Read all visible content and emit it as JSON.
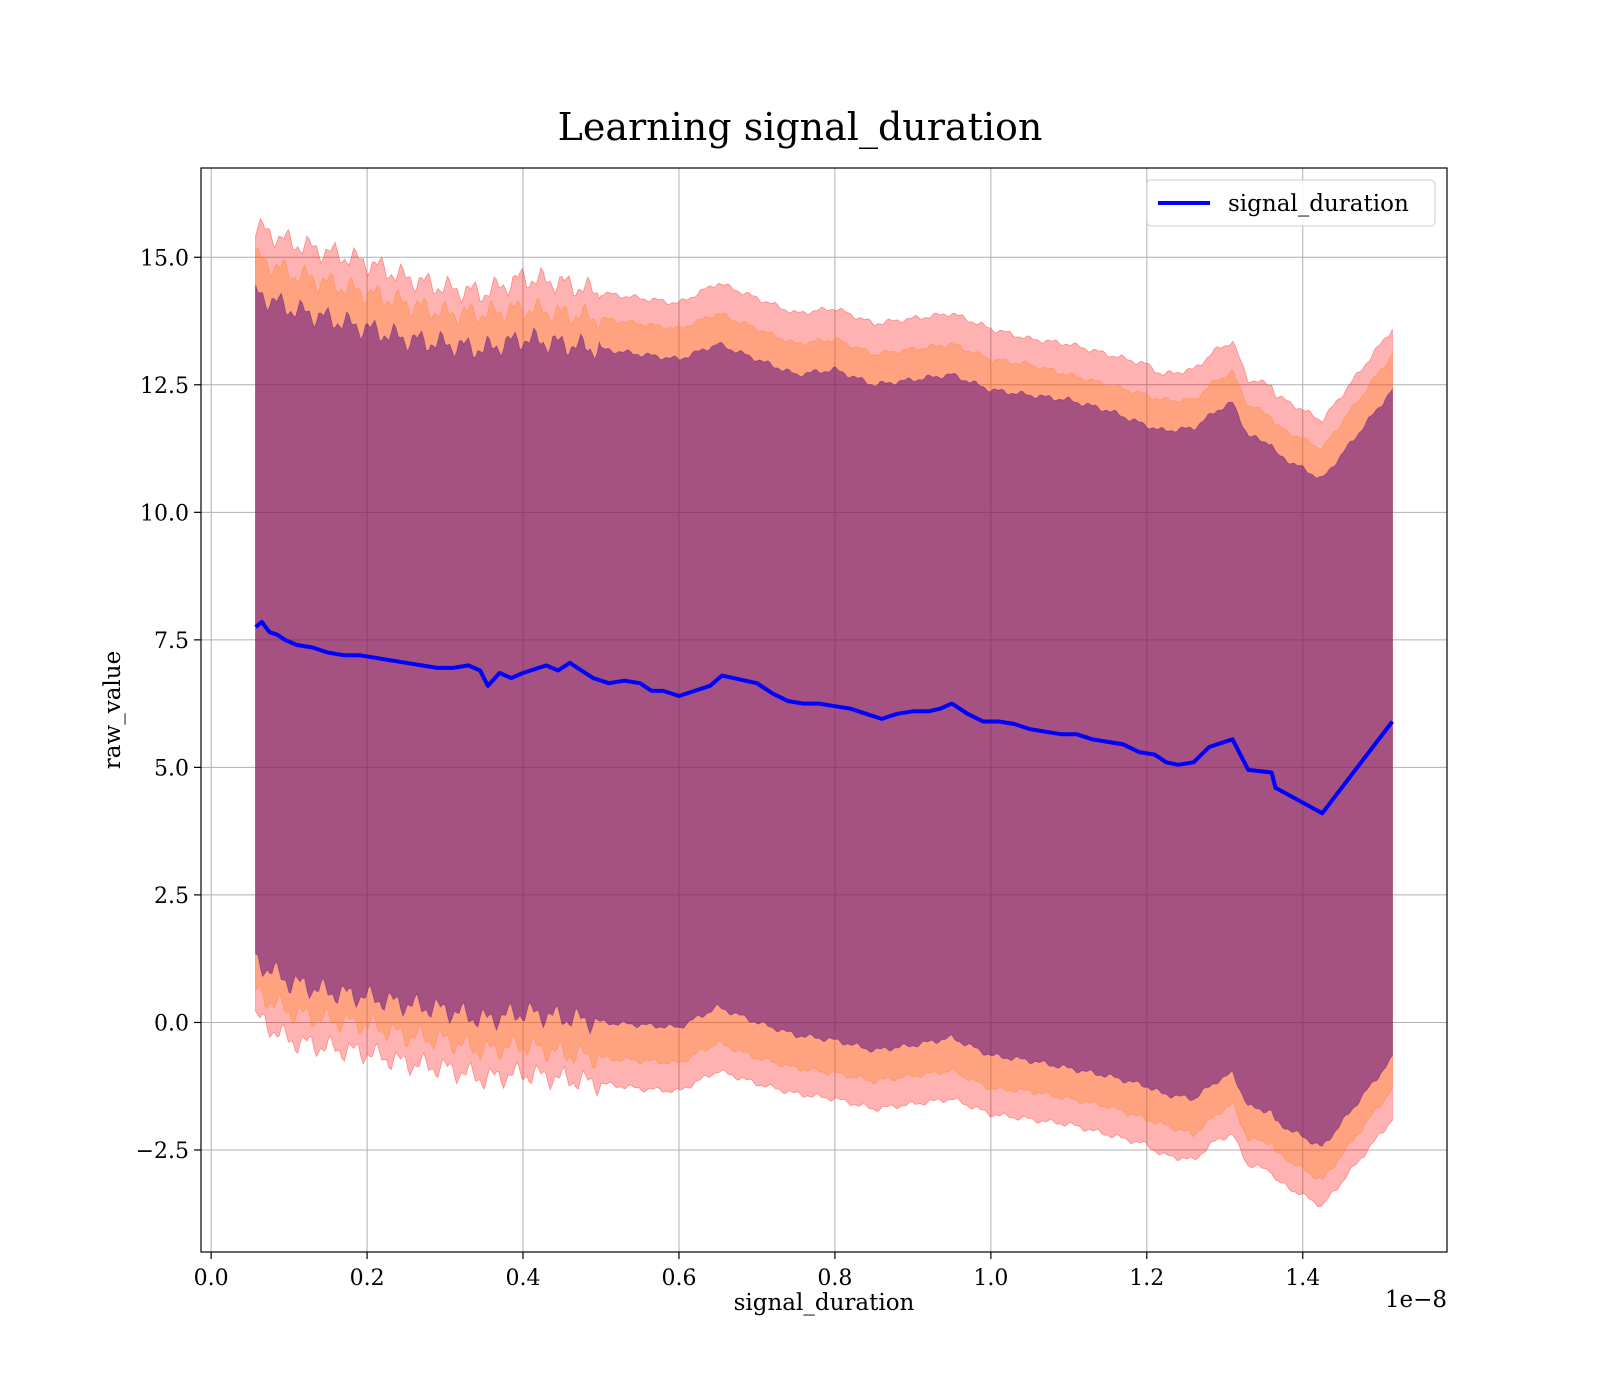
{
  "chart_data": {
    "type": "line",
    "title": "Learning signal_duration",
    "xlabel": "signal_duration",
    "ylabel": "raw_value",
    "x_offset_label": "1e−8",
    "x_scale": 1e-08,
    "xlim": [
      -0.013,
      1.585
    ],
    "ylim": [
      -4.5,
      16.75
    ],
    "x_ticks": [
      0.0,
      0.2,
      0.4,
      0.6,
      0.8,
      1.0,
      1.2,
      1.4
    ],
    "x_tick_labels": [
      "0.0",
      "0.2",
      "0.4",
      "0.6",
      "0.8",
      "1.0",
      "1.2",
      "1.4"
    ],
    "y_ticks": [
      -2.5,
      0.0,
      2.5,
      5.0,
      7.5,
      10.0,
      12.5,
      15.0
    ],
    "y_tick_labels": [
      "−2.5",
      "0.0",
      "2.5",
      "5.0",
      "7.5",
      "10.0",
      "12.5",
      "15.0"
    ],
    "grid": true,
    "legend": {
      "placement": "upper-right",
      "entries": [
        "signal_duration"
      ]
    },
    "colors": {
      "line": "#0000ff",
      "band_outer": "#ff0000",
      "band_middle": "#ff7f0e",
      "band_inner": "#4b0082"
    },
    "series": [
      {
        "name": "signal_duration",
        "x": [
          0.057,
          0.065,
          0.075,
          0.085,
          0.095,
          0.11,
          0.13,
          0.15,
          0.17,
          0.19,
          0.21,
          0.23,
          0.25,
          0.27,
          0.29,
          0.31,
          0.33,
          0.345,
          0.355,
          0.37,
          0.385,
          0.4,
          0.42,
          0.43,
          0.445,
          0.46,
          0.475,
          0.49,
          0.51,
          0.53,
          0.55,
          0.565,
          0.58,
          0.6,
          0.62,
          0.64,
          0.655,
          0.67,
          0.685,
          0.7,
          0.72,
          0.74,
          0.76,
          0.78,
          0.8,
          0.82,
          0.84,
          0.86,
          0.88,
          0.9,
          0.92,
          0.935,
          0.95,
          0.97,
          0.99,
          1.01,
          1.03,
          1.05,
          1.07,
          1.09,
          1.11,
          1.13,
          1.15,
          1.17,
          1.19,
          1.21,
          1.225,
          1.24,
          1.26,
          1.28,
          1.31,
          1.33,
          1.36,
          1.365,
          1.425,
          1.515
        ],
        "y": [
          7.75,
          7.85,
          7.65,
          7.6,
          7.5,
          7.4,
          7.35,
          7.25,
          7.2,
          7.2,
          7.15,
          7.1,
          7.05,
          7.0,
          6.95,
          6.95,
          7.0,
          6.9,
          6.6,
          6.85,
          6.75,
          6.85,
          6.95,
          7.0,
          6.9,
          7.05,
          6.9,
          6.75,
          6.65,
          6.7,
          6.65,
          6.5,
          6.5,
          6.4,
          6.5,
          6.6,
          6.8,
          6.75,
          6.7,
          6.65,
          6.45,
          6.3,
          6.25,
          6.25,
          6.2,
          6.15,
          6.05,
          5.95,
          6.05,
          6.1,
          6.1,
          6.15,
          6.25,
          6.05,
          5.9,
          5.9,
          5.85,
          5.75,
          5.7,
          5.65,
          5.65,
          5.55,
          5.5,
          5.45,
          5.3,
          5.25,
          5.1,
          5.05,
          5.1,
          5.4,
          5.55,
          4.95,
          4.9,
          4.6,
          4.1,
          5.9
        ]
      }
    ],
    "bands": [
      {
        "role": "outer",
        "x": [
          0.057,
          0.1,
          0.15,
          0.2,
          0.25,
          0.3,
          0.35,
          0.4,
          0.45,
          0.5,
          0.55,
          0.6,
          0.65,
          0.7,
          0.75,
          0.8,
          0.85,
          0.9,
          0.95,
          1.0,
          1.05,
          1.1,
          1.15,
          1.2,
          1.22,
          1.26,
          1.29,
          1.31,
          1.33,
          1.36,
          1.365,
          1.425,
          1.515
        ],
        "upper": [
          15.6,
          15.3,
          15.1,
          14.9,
          14.6,
          14.4,
          14.3,
          14.6,
          14.5,
          14.3,
          14.2,
          14.1,
          14.5,
          14.2,
          13.9,
          14.0,
          13.7,
          13.8,
          13.9,
          13.6,
          13.4,
          13.3,
          13.1,
          12.9,
          12.7,
          12.8,
          13.2,
          13.35,
          12.6,
          12.5,
          12.3,
          11.8,
          13.6
        ],
        "lower": [
          0.1,
          -0.35,
          -0.5,
          -0.6,
          -0.8,
          -0.9,
          -1.1,
          -1.0,
          -1.1,
          -1.2,
          -1.3,
          -1.35,
          -0.95,
          -1.2,
          -1.4,
          -1.5,
          -1.7,
          -1.6,
          -1.5,
          -1.8,
          -1.9,
          -2.0,
          -2.2,
          -2.4,
          -2.6,
          -2.7,
          -2.3,
          -2.2,
          -2.8,
          -2.9,
          -3.1,
          -3.6,
          -1.9
        ]
      },
      {
        "role": "middle",
        "x": [
          0.057,
          0.1,
          0.15,
          0.2,
          0.25,
          0.3,
          0.35,
          0.4,
          0.45,
          0.5,
          0.55,
          0.6,
          0.65,
          0.7,
          0.75,
          0.8,
          0.85,
          0.9,
          0.95,
          1.0,
          1.05,
          1.1,
          1.15,
          1.2,
          1.22,
          1.26,
          1.29,
          1.31,
          1.33,
          1.36,
          1.365,
          1.425,
          1.515
        ],
        "upper": [
          15.0,
          14.7,
          14.5,
          14.3,
          14.1,
          13.9,
          13.9,
          14.0,
          13.9,
          13.8,
          13.7,
          13.6,
          13.9,
          13.6,
          13.3,
          13.4,
          13.1,
          13.2,
          13.3,
          13.0,
          12.9,
          12.7,
          12.5,
          12.3,
          12.2,
          12.2,
          12.6,
          12.75,
          12.1,
          11.9,
          11.7,
          11.25,
          13.1
        ],
        "lower": [
          0.6,
          0.2,
          0.05,
          -0.05,
          -0.25,
          -0.35,
          -0.55,
          -0.45,
          -0.6,
          -0.7,
          -0.75,
          -0.8,
          -0.4,
          -0.7,
          -0.9,
          -1.0,
          -1.15,
          -1.05,
          -0.95,
          -1.3,
          -1.35,
          -1.5,
          -1.65,
          -1.9,
          -2.0,
          -2.2,
          -1.8,
          -1.6,
          -2.3,
          -2.35,
          -2.55,
          -3.1,
          -1.3
        ]
      },
      {
        "role": "inner",
        "x": [
          0.057,
          0.1,
          0.15,
          0.2,
          0.25,
          0.3,
          0.35,
          0.4,
          0.45,
          0.5,
          0.55,
          0.6,
          0.65,
          0.7,
          0.75,
          0.8,
          0.85,
          0.9,
          0.95,
          1.0,
          1.05,
          1.1,
          1.15,
          1.2,
          1.22,
          1.26,
          1.29,
          1.31,
          1.33,
          1.36,
          1.365,
          1.425,
          1.515
        ],
        "upper": [
          14.3,
          14.0,
          13.8,
          13.6,
          13.4,
          13.3,
          13.2,
          13.4,
          13.3,
          13.2,
          13.1,
          13.0,
          13.3,
          13.0,
          12.7,
          12.8,
          12.5,
          12.6,
          12.7,
          12.4,
          12.3,
          12.2,
          12.0,
          11.7,
          11.6,
          11.65,
          12.0,
          12.15,
          11.5,
          11.35,
          11.15,
          10.65,
          12.4
        ],
        "lower": [
          1.2,
          0.8,
          0.6,
          0.5,
          0.35,
          0.25,
          0.05,
          0.2,
          0.1,
          0.0,
          -0.05,
          -0.1,
          0.3,
          0.0,
          -0.25,
          -0.35,
          -0.55,
          -0.45,
          -0.3,
          -0.65,
          -0.75,
          -0.9,
          -1.05,
          -1.25,
          -1.4,
          -1.5,
          -1.15,
          -1.0,
          -1.65,
          -1.75,
          -1.95,
          -2.45,
          -0.7
        ]
      }
    ]
  }
}
